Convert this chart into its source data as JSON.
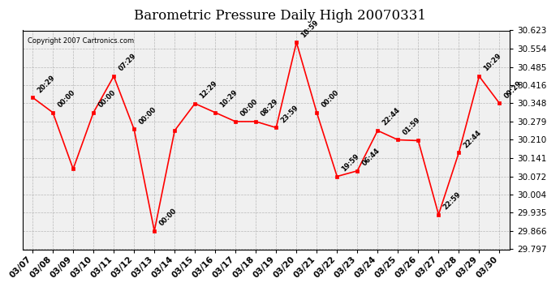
{
  "title": "Barometric Pressure Daily High 20070331",
  "copyright": "Copyright 2007 Cartronics.com",
  "dates": [
    "03/07",
    "03/08",
    "03/09",
    "03/10",
    "03/11",
    "03/12",
    "03/13",
    "03/14",
    "03/15",
    "03/16",
    "03/17",
    "03/18",
    "03/19",
    "03/20",
    "03/21",
    "03/22",
    "03/23",
    "03/24",
    "03/25",
    "03/26",
    "03/27",
    "03/28",
    "03/29",
    "03/30"
  ],
  "values": [
    30.37,
    30.313,
    30.1,
    30.313,
    30.45,
    30.25,
    29.866,
    30.245,
    30.347,
    30.313,
    30.279,
    30.279,
    30.256,
    30.578,
    30.313,
    30.072,
    30.093,
    30.245,
    30.21,
    30.207,
    29.928,
    30.162,
    30.45,
    30.348
  ],
  "time_labels": [
    "20:29",
    "00:00",
    "",
    "00:00",
    "07:29",
    "00:00",
    "00:00",
    "",
    "12:29",
    "10:29",
    "00:00",
    "08:29",
    "23:59",
    "10:59",
    "00:00",
    "19:59",
    "06:44",
    "22:44",
    "01:59",
    "",
    "22:59",
    "22:44",
    "10:29",
    "09:29"
  ],
  "ylim": [
    29.797,
    30.623
  ],
  "yticks": [
    29.797,
    29.866,
    29.935,
    30.004,
    30.072,
    30.141,
    30.21,
    30.279,
    30.348,
    30.416,
    30.485,
    30.554,
    30.623
  ],
  "line_color": "red",
  "marker_color": "red",
  "grid_color": "#aaaaaa",
  "bg_color": "#ffffff",
  "plot_bg_color": "#f0f0f0",
  "title_fontsize": 12,
  "tick_fontsize": 7.5,
  "annot_fontsize": 6.0
}
